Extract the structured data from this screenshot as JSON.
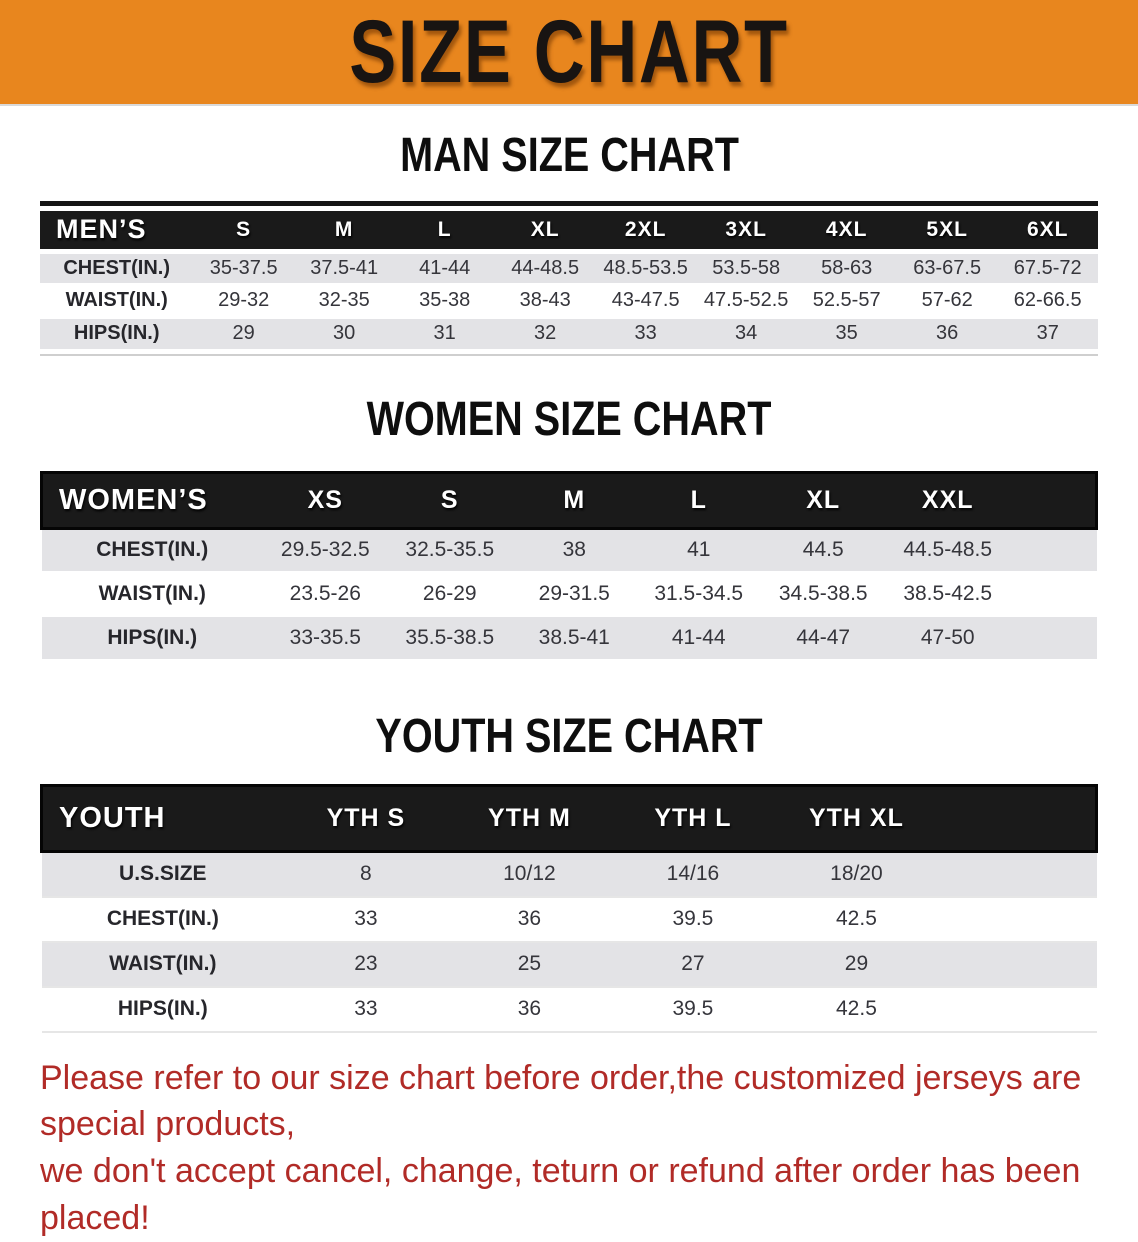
{
  "banner": {
    "title": "SIZE CHART",
    "bg_color": "#e8861e"
  },
  "colors": {
    "banner_bg": "#e8861e",
    "header_bar": "#1a1a1a",
    "row_stripe": "#e3e3e6",
    "note_red": "#b12b27"
  },
  "man": {
    "heading": "MAN SIZE CHART",
    "table": {
      "corner": "MEN’S",
      "columns": [
        "S",
        "M",
        "L",
        "XL",
        "2XL",
        "3XL",
        "4XL",
        "5XL",
        "6XL"
      ],
      "rows": [
        {
          "label": "CHEST(IN.)",
          "values": [
            "35-37.5",
            "37.5-41",
            "41-44",
            "44-48.5",
            "48.5-53.5",
            "53.5-58",
            "58-63",
            "63-67.5",
            "67.5-72"
          ]
        },
        {
          "label": "WAIST(IN.)",
          "values": [
            "29-32",
            "32-35",
            "35-38",
            "38-43",
            "43-47.5",
            "47.5-52.5",
            "52.5-57",
            "57-62",
            "62-66.5"
          ]
        },
        {
          "label": "HIPS(IN.)",
          "values": [
            "29",
            "30",
            "31",
            "32",
            "33",
            "34",
            "35",
            "36",
            "37"
          ]
        }
      ]
    }
  },
  "women": {
    "heading": "WOMEN SIZE CHART",
    "table": {
      "corner": "WOMEN’S",
      "columns": [
        "XS",
        "S",
        "M",
        "L",
        "XL",
        "XXL"
      ],
      "rows": [
        {
          "label": "CHEST(IN.)",
          "values": [
            "29.5-32.5",
            "32.5-35.5",
            "38",
            "41",
            "44.5",
            "44.5-48.5"
          ]
        },
        {
          "label": "WAIST(IN.)",
          "values": [
            "23.5-26",
            "26-29",
            "29-31.5",
            "31.5-34.5",
            "34.5-38.5",
            "38.5-42.5"
          ]
        },
        {
          "label": "HIPS(IN.)",
          "values": [
            "33-35.5",
            "35.5-38.5",
            "38.5-41",
            "41-44",
            "44-47",
            "47-50"
          ]
        }
      ]
    }
  },
  "youth": {
    "heading": "YOUTH SIZE CHART",
    "table": {
      "corner": "YOUTH",
      "columns": [
        "YTH S",
        "YTH M",
        "YTH L",
        "YTH XL"
      ],
      "rows": [
        {
          "label": "U.S.SIZE",
          "values": [
            "8",
            "10/12",
            "14/16",
            "18/20"
          ]
        },
        {
          "label": "CHEST(IN.)",
          "values": [
            "33",
            "36",
            "39.5",
            "42.5"
          ]
        },
        {
          "label": "WAIST(IN.)",
          "values": [
            "23",
            "25",
            "27",
            "29"
          ]
        },
        {
          "label": "HIPS(IN.)",
          "values": [
            "33",
            "36",
            "39.5",
            "42.5"
          ]
        }
      ]
    }
  },
  "note": {
    "lines": [
      "Please refer to our size chart before order,the customized jerseys are special products,",
      "we don't accept cancel, change, teturn or refund after order has been placed!"
    ]
  }
}
